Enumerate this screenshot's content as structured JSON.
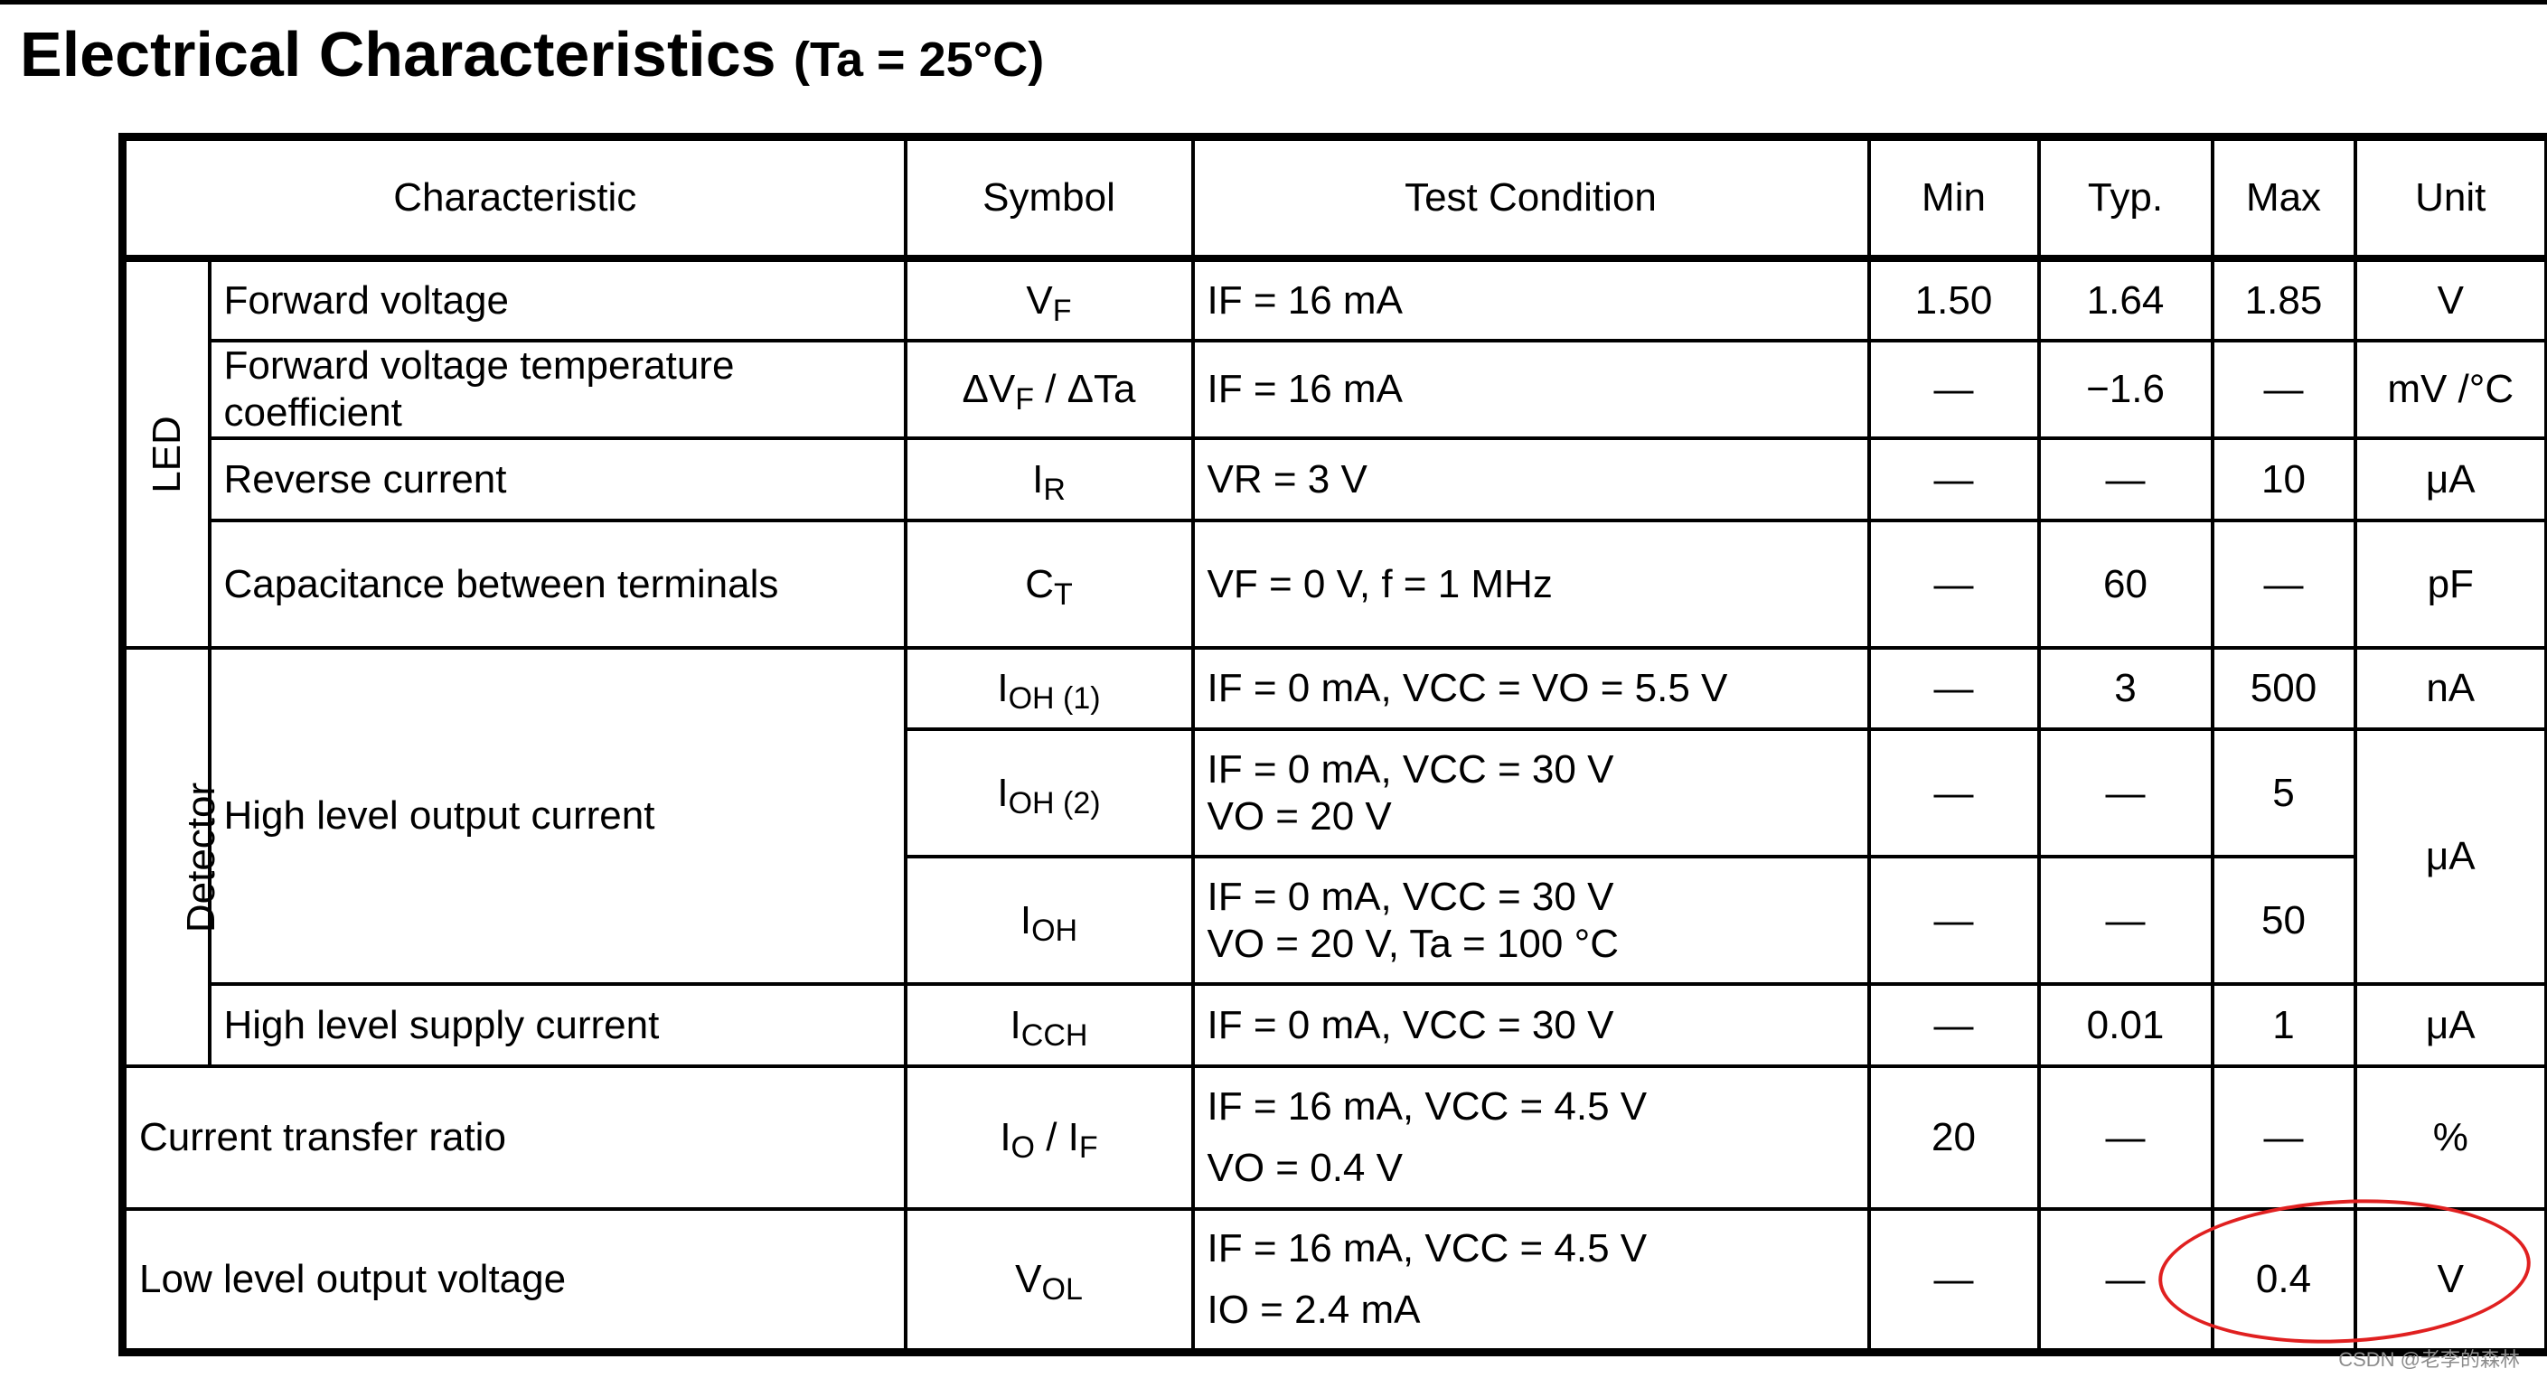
{
  "title": {
    "main": "Electrical Characteristics",
    "condition": "(Ta = 25°C)"
  },
  "headers": [
    "Characteristic",
    "Symbol",
    "Test Condition",
    "Min",
    "Typ.",
    "Max",
    "Unit"
  ],
  "groups": {
    "led": "LED",
    "detector": "Detector"
  },
  "rows": [
    {
      "char": "Forward voltage",
      "sym": "V",
      "sym_sub": "F",
      "cond": "IF = 16 mA",
      "min": "1.50",
      "typ": "1.64",
      "max": "1.85",
      "unit": "V"
    },
    {
      "char": "Forward voltage temperature coefficient",
      "sym": "ΔV",
      "sym_sub": "F",
      "sym_tail": " / ΔTa",
      "cond": "IF = 16 mA",
      "min": "—",
      "typ": "−1.6",
      "max": "—",
      "unit": "mV /°C"
    },
    {
      "char": "Reverse current",
      "sym": "I",
      "sym_sub": "R",
      "cond": "VR = 3 V",
      "min": "—",
      "typ": "—",
      "max": "10",
      "unit": "μA"
    },
    {
      "char": "Capacitance between terminals",
      "sym": "C",
      "sym_sub": "T",
      "cond": "VF = 0 V, f = 1 MHz",
      "min": "—",
      "typ": "60",
      "max": "—",
      "unit": "pF"
    },
    {
      "char": "",
      "sym": "I",
      "sym_sub": "OH (1)",
      "cond": "IF = 0 mA, VCC = VO = 5.5 V",
      "min": "—",
      "typ": "3",
      "max": "500",
      "unit": "nA"
    },
    {
      "char": "High level output current",
      "sym": "I",
      "sym_sub": "OH (2)",
      "cond": "IF = 0 mA, VCC = 30 V",
      "cond2": "VO = 20 V",
      "min": "—",
      "typ": "—",
      "max": "5",
      "unit": "μA"
    },
    {
      "char": "",
      "sym": "I",
      "sym_sub": "OH",
      "cond": "IF = 0 mA, VCC = 30 V",
      "cond2": "VO = 20 V, Ta = 100 °C",
      "min": "—",
      "typ": "—",
      "max": "50",
      "unit": ""
    },
    {
      "char": "High level supply current",
      "sym": "I",
      "sym_sub": "CCH",
      "cond": "IF = 0 mA, VCC = 30 V",
      "min": "—",
      "typ": "0.01",
      "max": "1",
      "unit": "μA"
    },
    {
      "char": "Current transfer ratio",
      "sym": "I",
      "sym_sub": "O",
      "sym_tail": " / I",
      "sym_sub2": "F",
      "cond": "IF = 16 mA, VCC = 4.5 V",
      "cond2": "VO = 0.4 V",
      "min": "20",
      "typ": "—",
      "max": "—",
      "unit": "%"
    },
    {
      "char": "Low level output voltage",
      "sym": "V",
      "sym_sub": "OL",
      "cond": "IF = 16 mA, VCC = 4.5 V",
      "cond2": "IO = 2.4 mA",
      "min": "—",
      "typ": "—",
      "max": "0.4",
      "unit": "V"
    }
  ],
  "watermark": "CSDN @老李的森林"
}
